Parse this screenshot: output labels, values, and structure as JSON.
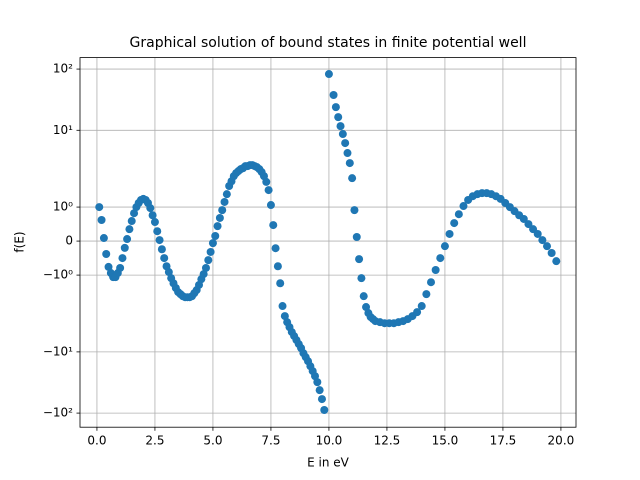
{
  "chart_data": {
    "type": "scatter",
    "title": "Graphical solution of bound states in finite potential well",
    "x_label": "E in eV",
    "y_label": "f(E)",
    "color": "#1f77b4",
    "grid": true,
    "yscale": "symlog",
    "linthresh": 2,
    "xlim": [
      -0.73,
      20.65
    ],
    "ylim": [
      -170,
      154
    ],
    "xticks": [
      {
        "value": 0,
        "label": "0.0"
      },
      2.5,
      {
        "value": 5,
        "label": "5.0"
      },
      7.5,
      {
        "value": 10,
        "label": "10.0"
      },
      12.5,
      {
        "value": 15,
        "label": "15.0"
      },
      17.5,
      {
        "value": 20,
        "label": "20.0"
      }
    ],
    "yticks": [
      {
        "value": 100,
        "label": "10²"
      },
      {
        "value": 10,
        "label": "10¹"
      },
      {
        "value": 1,
        "label": "10⁰"
      },
      0,
      {
        "value": -1,
        "label": "−10⁰"
      },
      {
        "value": -10,
        "label": "−10¹"
      },
      {
        "value": -100,
        "label": "−10²"
      }
    ],
    "x": [
      0.1,
      0.2,
      0.3,
      0.4,
      0.5,
      0.6,
      0.7,
      0.8,
      0.9,
      1.0,
      1.1,
      1.2,
      1.3,
      1.4,
      1.5,
      1.6,
      1.7,
      1.8,
      1.9,
      2.0,
      2.1,
      2.2,
      2.3,
      2.4,
      2.5,
      2.6,
      2.7,
      2.8,
      2.9,
      3.0,
      3.1,
      3.2,
      3.3,
      3.4,
      3.5,
      3.6,
      3.7,
      3.8,
      3.9,
      4.0,
      4.1,
      4.2,
      4.3,
      4.4,
      4.5,
      4.6,
      4.7,
      4.8,
      4.9,
      5.0,
      5.1,
      5.2,
      5.3,
      5.4,
      5.5,
      5.6,
      5.7,
      5.8,
      5.9,
      6.0,
      6.1,
      6.2,
      6.3,
      6.4,
      6.5,
      6.6,
      6.7,
      6.8,
      6.9,
      7.0,
      7.1,
      7.2,
      7.3,
      7.4,
      7.5,
      7.6,
      7.7,
      7.8,
      7.9,
      8.0,
      8.1,
      8.2,
      8.3,
      8.4,
      8.5,
      8.6,
      8.7,
      8.8,
      8.9,
      9.0,
      9.1,
      9.2,
      9.3,
      9.4,
      9.5,
      9.6,
      9.7,
      9.8,
      10.0,
      10.2,
      10.3,
      10.4,
      10.5,
      10.6,
      10.7,
      10.8,
      10.9,
      11.0,
      11.1,
      11.2,
      11.3,
      11.4,
      11.5,
      11.6,
      11.7,
      11.8,
      11.9,
      12.0,
      12.2,
      12.4,
      12.6,
      12.8,
      13.0,
      13.2,
      13.4,
      13.6,
      13.8,
      14.0,
      14.2,
      14.4,
      14.6,
      14.8,
      15.0,
      15.2,
      15.4,
      15.6,
      15.8,
      16.0,
      16.2,
      16.4,
      16.6,
      16.8,
      17.0,
      17.2,
      17.4,
      17.6,
      17.8,
      18.0,
      18.2,
      18.4,
      18.6,
      18.8,
      19.0,
      19.2,
      19.4,
      19.6,
      19.8
    ],
    "values": [
      1.0,
      0.62,
      0.09,
      -0.38,
      -0.76,
      -0.94,
      -1.06,
      -1.06,
      -0.94,
      -0.79,
      -0.5,
      -0.2,
      0.06,
      0.35,
      0.59,
      0.82,
      1.0,
      1.12,
      1.21,
      1.24,
      1.21,
      1.12,
      0.97,
      0.76,
      0.56,
      0.29,
      0.03,
      -0.24,
      -0.5,
      -0.74,
      -0.91,
      -1.09,
      -1.24,
      -1.38,
      -1.5,
      -1.56,
      -1.62,
      -1.65,
      -1.65,
      -1.65,
      -1.62,
      -1.53,
      -1.44,
      -1.29,
      -1.12,
      -0.97,
      -0.79,
      -0.56,
      -0.32,
      -0.06,
      0.15,
      0.44,
      0.68,
      0.91,
      1.15,
      1.38,
      1.62,
      1.76,
      1.91,
      2.0,
      2.16,
      2.32,
      2.41,
      2.6,
      2.6,
      2.7,
      2.7,
      2.6,
      2.5,
      2.32,
      2.08,
      1.91,
      1.74,
      1.5,
      1.06,
      0.47,
      -0.21,
      -0.74,
      -1.24,
      -1.91,
      -2.6,
      -3.27,
      -3.94,
      -4.75,
      -5.52,
      -6.42,
      -7.46,
      -8.68,
      -10.5,
      -12.2,
      -14.2,
      -17.1,
      -20.6,
      -24.9,
      -31.2,
      -42.2,
      -59,
      -89,
      83,
      37.7,
      23.9,
      16.4,
      11.7,
      8.68,
      6.18,
      4.25,
      2.91,
      1.85,
      0.91,
      0.12,
      -0.53,
      -1.09,
      -1.62,
      -1.94,
      -2.32,
      -2.7,
      -2.91,
      -3.14,
      -3.27,
      -3.4,
      -3.4,
      -3.4,
      -3.27,
      -3.14,
      -2.91,
      -2.6,
      -2.24,
      -1.91,
      -1.56,
      -1.21,
      -0.85,
      -0.5,
      -0.15,
      0.21,
      0.53,
      0.79,
      1.03,
      1.21,
      1.32,
      1.38,
      1.41,
      1.41,
      1.38,
      1.32,
      1.24,
      1.12,
      1.0,
      0.88,
      0.76,
      0.65,
      0.5,
      0.35,
      0.21,
      0.03,
      -0.15,
      -0.35,
      -0.59
    ]
  }
}
